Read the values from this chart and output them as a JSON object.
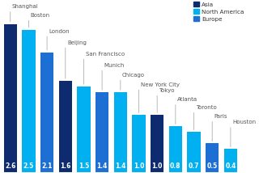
{
  "cities": [
    "Shanghai",
    "Boston",
    "London",
    "Beijing",
    "San Francisco",
    "Munich",
    "Chicago",
    "New York City",
    "Tokyo",
    "Atlanta",
    "Toronto",
    "Paris",
    "Houston"
  ],
  "values": [
    2.6,
    2.5,
    2.1,
    1.6,
    1.5,
    1.4,
    1.4,
    1.0,
    1.0,
    0.8,
    0.7,
    0.5,
    0.4
  ],
  "colors": [
    "#0d2b6e",
    "#00b0f0",
    "#1e6fd4",
    "#0d2b6e",
    "#00b0f0",
    "#1e6fd4",
    "#00b0f0",
    "#00b0f0",
    "#0d2b6e",
    "#00b0f0",
    "#00b0f0",
    "#1e6fd4",
    "#00b0f0"
  ],
  "regions": [
    "Asia",
    "North America",
    "Europe",
    "Asia",
    "North America",
    "Europe",
    "North America",
    "North America",
    "Asia",
    "North America",
    "North America",
    "Europe",
    "North America"
  ],
  "legend_labels": [
    "Asia",
    "North America",
    "Europe"
  ],
  "legend_colors": [
    "#0d2b6e",
    "#00b0f0",
    "#1e6fd4"
  ],
  "bg_color": "#ffffff",
  "bar_label_color": "white",
  "label_fontsize": 5.0,
  "city_fontsize": 5.0,
  "value_fontsize": 5.5
}
